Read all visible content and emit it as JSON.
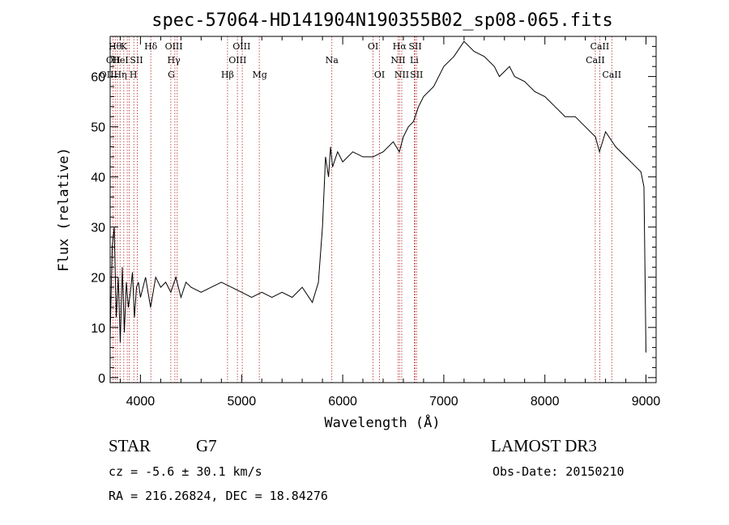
{
  "chart_data": {
    "type": "line",
    "title": "spec-57064-HD141904N190355B02_sp08-065.fits",
    "xlabel": "Wavelength (Å)",
    "ylabel": "Flux (relative)",
    "xlim": [
      3700,
      9100
    ],
    "ylim": [
      -1,
      68
    ],
    "xticks": [
      4000,
      5000,
      6000,
      7000,
      8000,
      9000
    ],
    "yticks": [
      0,
      10,
      20,
      30,
      40,
      50,
      60
    ],
    "grid": false,
    "series": [
      {
        "name": "spectrum",
        "x": [
          3700,
          3720,
          3740,
          3760,
          3780,
          3800,
          3820,
          3840,
          3860,
          3880,
          3900,
          3920,
          3940,
          3960,
          3980,
          4000,
          4050,
          4100,
          4150,
          4200,
          4250,
          4300,
          4350,
          4400,
          4450,
          4500,
          4600,
          4700,
          4800,
          4900,
          5000,
          5100,
          5200,
          5300,
          5400,
          5500,
          5600,
          5700,
          5760,
          5800,
          5830,
          5860,
          5880,
          5900,
          5950,
          6000,
          6100,
          6200,
          6300,
          6400,
          6500,
          6560,
          6600,
          6650,
          6700,
          6750,
          6800,
          6900,
          7000,
          7100,
          7200,
          7300,
          7400,
          7500,
          7550,
          7600,
          7650,
          7700,
          7800,
          7900,
          8000,
          8100,
          8200,
          8300,
          8400,
          8500,
          8540,
          8600,
          8700,
          8800,
          8900,
          8950,
          8980,
          9000
        ],
        "y": [
          8,
          26,
          30,
          12,
          20,
          7,
          22,
          9,
          19,
          14,
          17,
          21,
          12,
          18,
          19,
          16,
          20,
          14,
          20,
          18,
          19,
          17,
          20,
          16,
          19,
          18,
          17,
          18,
          19,
          18,
          17,
          16,
          17,
          16,
          17,
          16,
          18,
          15,
          19,
          30,
          44,
          40,
          46,
          42,
          45,
          43,
          45,
          44,
          44,
          45,
          47,
          45,
          48,
          50,
          51,
          54,
          56,
          58,
          62,
          64,
          67,
          65,
          64,
          62,
          60,
          61,
          62,
          60,
          59,
          57,
          56,
          54,
          52,
          52,
          50,
          48,
          45,
          49,
          46,
          44,
          42,
          41,
          38,
          5
        ]
      }
    ],
    "line_labels": [
      {
        "wavelength": 3750,
        "text": "Hθ",
        "row": 1
      },
      {
        "wavelength": 3730,
        "text": "OII",
        "row": 2
      },
      {
        "wavelength": 3730,
        "text": "OIIHη",
        "row": 3
      },
      {
        "wavelength": 3835,
        "text": "K",
        "row": 1
      },
      {
        "wavelength": 3800,
        "text": "HeI",
        "row": 2
      },
      {
        "wavelength": 3960,
        "text": "SII",
        "row": 2
      },
      {
        "wavelength": 3930,
        "text": "H",
        "row": 3
      },
      {
        "wavelength": 4102,
        "text": "Hδ",
        "row": 1
      },
      {
        "wavelength": 4330,
        "text": "OIII",
        "row": 1
      },
      {
        "wavelength": 4330,
        "text": "Hγ",
        "row": 2
      },
      {
        "wavelength": 4305,
        "text": "G",
        "row": 3
      },
      {
        "wavelength": 4861,
        "text": "Hβ",
        "row": 3
      },
      {
        "wavelength": 5000,
        "text": "OIII",
        "row": 1
      },
      {
        "wavelength": 4960,
        "text": "OIII",
        "row": 2
      },
      {
        "wavelength": 5180,
        "text": "Mg",
        "row": 3
      },
      {
        "wavelength": 5893,
        "text": "Na",
        "row": 2
      },
      {
        "wavelength": 6300,
        "text": "OI",
        "row": 1
      },
      {
        "wavelength": 6364,
        "text": "OI",
        "row": 3
      },
      {
        "wavelength": 6563,
        "text": "Hα",
        "row": 1
      },
      {
        "wavelength": 6548,
        "text": "NII",
        "row": 2
      },
      {
        "wavelength": 6584,
        "text": "NII",
        "row": 3
      },
      {
        "wavelength": 6717,
        "text": "SII",
        "row": 1
      },
      {
        "wavelength": 6708,
        "text": "Li",
        "row": 2
      },
      {
        "wavelength": 6731,
        "text": "SII",
        "row": 3
      },
      {
        "wavelength": 8542,
        "text": "CaII",
        "row": 1
      },
      {
        "wavelength": 8498,
        "text": "CaII",
        "row": 2
      },
      {
        "wavelength": 8662,
        "text": "CaII",
        "row": 3
      }
    ],
    "line_positions": [
      3727,
      3750,
      3771,
      3798,
      3835,
      3869,
      3889,
      3934,
      3969,
      4102,
      4300,
      4340,
      4363,
      4861,
      4959,
      5007,
      5175,
      5893,
      6300,
      6364,
      6548,
      6563,
      6584,
      6708,
      6717,
      6731,
      8498,
      8542,
      8662
    ]
  },
  "info": {
    "object_class": "STAR",
    "subclass": "G7",
    "survey": "LAMOST DR3",
    "redshift": "cz = -5.6 ± 30.1 km/s",
    "obs_date": "Obs-Date: 20150210",
    "coords": "RA = 216.26824, DEC =  18.84276"
  },
  "colors": {
    "spectrum": "#000000",
    "line_marker": "#b22222"
  }
}
